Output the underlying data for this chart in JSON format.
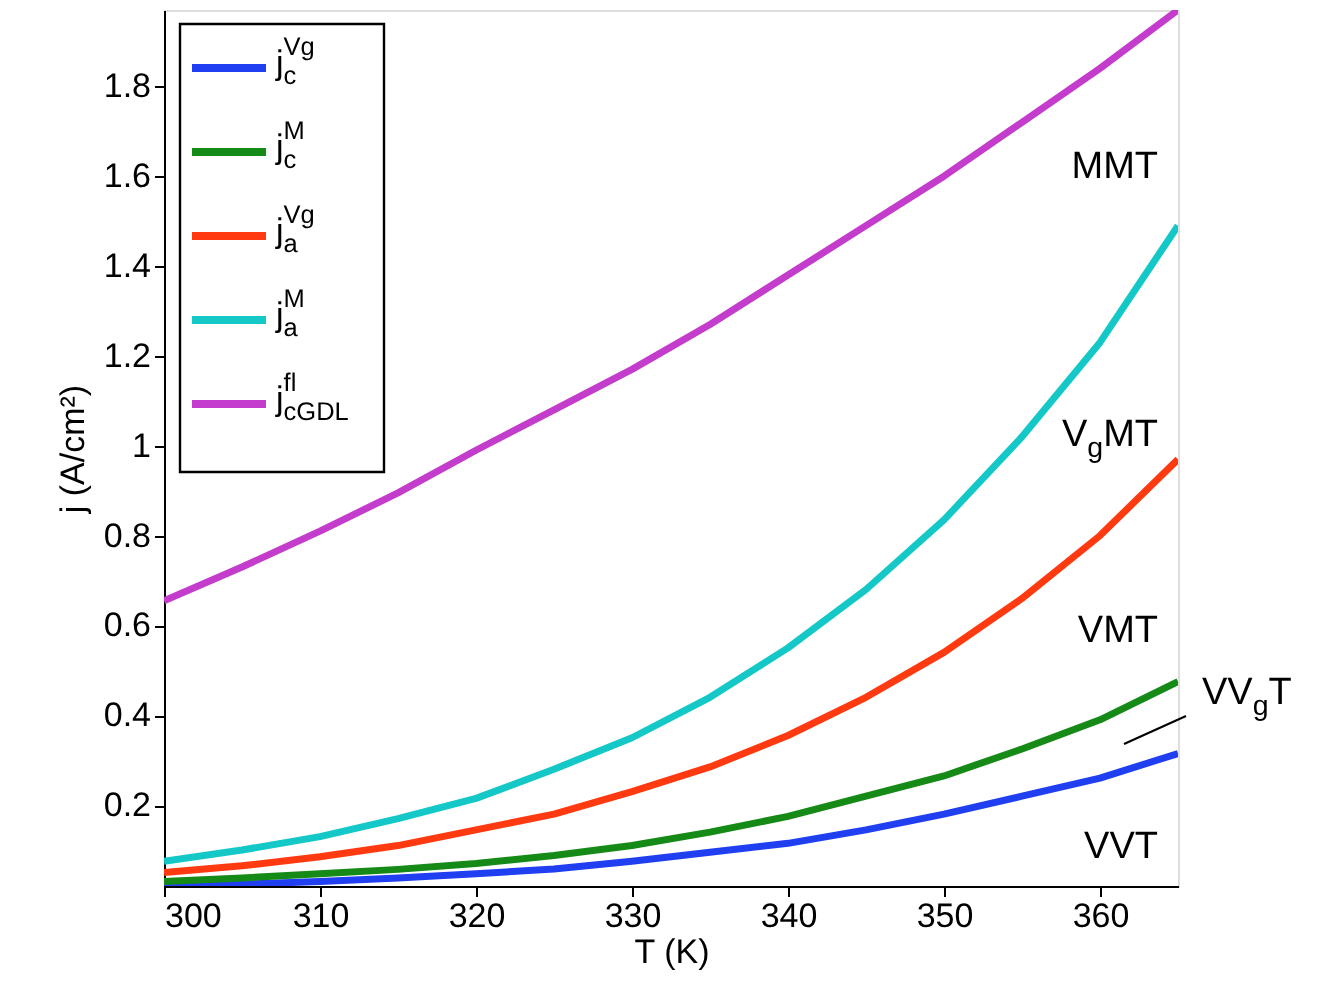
{
  "chart_data": {
    "type": "line",
    "xlabel": "T (K)",
    "ylabel": "j (A/cm²)",
    "x": [
      300,
      305,
      310,
      315,
      320,
      325,
      330,
      335,
      340,
      345,
      350,
      355,
      360,
      365
    ],
    "series": [
      {
        "name": "j$_{c}$$^{Vg}$",
        "color": "#1f3ff0",
        "values": [
          0.02,
          0.024,
          0.03,
          0.038,
          0.047,
          0.058,
          0.075,
          0.095,
          0.115,
          0.145,
          0.18,
          0.22,
          0.26,
          0.315
        ]
      },
      {
        "name": "j$_{c}$$^{M}$",
        "color": "#168a16",
        "values": [
          0.03,
          0.038,
          0.047,
          0.057,
          0.07,
          0.088,
          0.11,
          0.14,
          0.175,
          0.22,
          0.265,
          0.325,
          0.39,
          0.475
        ]
      },
      {
        "name": "j$_{a}$$^{Vg}$",
        "color": "#ff3a10",
        "values": [
          0.05,
          0.065,
          0.085,
          0.11,
          0.145,
          0.18,
          0.23,
          0.285,
          0.355,
          0.44,
          0.54,
          0.66,
          0.8,
          0.97
        ]
      },
      {
        "name": "j$_{a}$$^{M}$",
        "color": "#15c8c8",
        "values": [
          0.075,
          0.1,
          0.13,
          0.17,
          0.215,
          0.28,
          0.35,
          0.44,
          0.55,
          0.68,
          0.835,
          1.02,
          1.23,
          1.49
        ]
      },
      {
        "name": "j$_{cGDL}$$^{fl}$",
        "color": "#c43ccc",
        "values": [
          0.655,
          0.73,
          0.81,
          0.895,
          0.99,
          1.08,
          1.17,
          1.27,
          1.38,
          1.49,
          1.6,
          1.72,
          1.84,
          1.97
        ]
      }
    ],
    "xlim": [
      300,
      365
    ],
    "ylim": [
      0.02,
      1.97
    ],
    "xticks": [
      300,
      310,
      320,
      330,
      340,
      350,
      360
    ],
    "yticks": [
      0.2,
      0.4,
      0.6,
      0.8,
      {
        "value": 1,
        "label": "1"
      },
      1.2,
      1.4,
      1.6,
      1.8
    ],
    "annotations": [
      "MMT",
      "V$_{g}$MT",
      "VMT",
      "VV$_{g}$T",
      "VVT"
    ],
    "grid": false,
    "legend": "top left",
    "marker": "none",
    "line_style": "solid"
  }
}
